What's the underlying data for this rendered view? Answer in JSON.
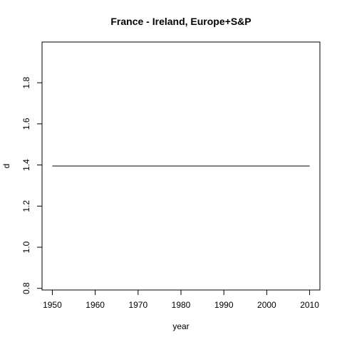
{
  "chart_data": {
    "type": "line",
    "title": "France - Ireland, Europe+S&P",
    "xlabel": "year",
    "ylabel": "d",
    "xlim": [
      1947.6,
      2012.4
    ],
    "ylim": [
      0.792,
      1.998
    ],
    "x_ticks": [
      1950,
      1960,
      1970,
      1980,
      1990,
      2000,
      2010
    ],
    "y_ticks": [
      0.8,
      1.0,
      1.2,
      1.4,
      1.6,
      1.8
    ],
    "y_tick_labels": [
      "0.8",
      "1.0",
      "1.2",
      "1.4",
      "1.6",
      "1.8"
    ],
    "grid": false,
    "series": [
      {
        "x": [
          1950,
          2010
        ],
        "y": [
          1.395,
          1.395
        ]
      }
    ]
  }
}
